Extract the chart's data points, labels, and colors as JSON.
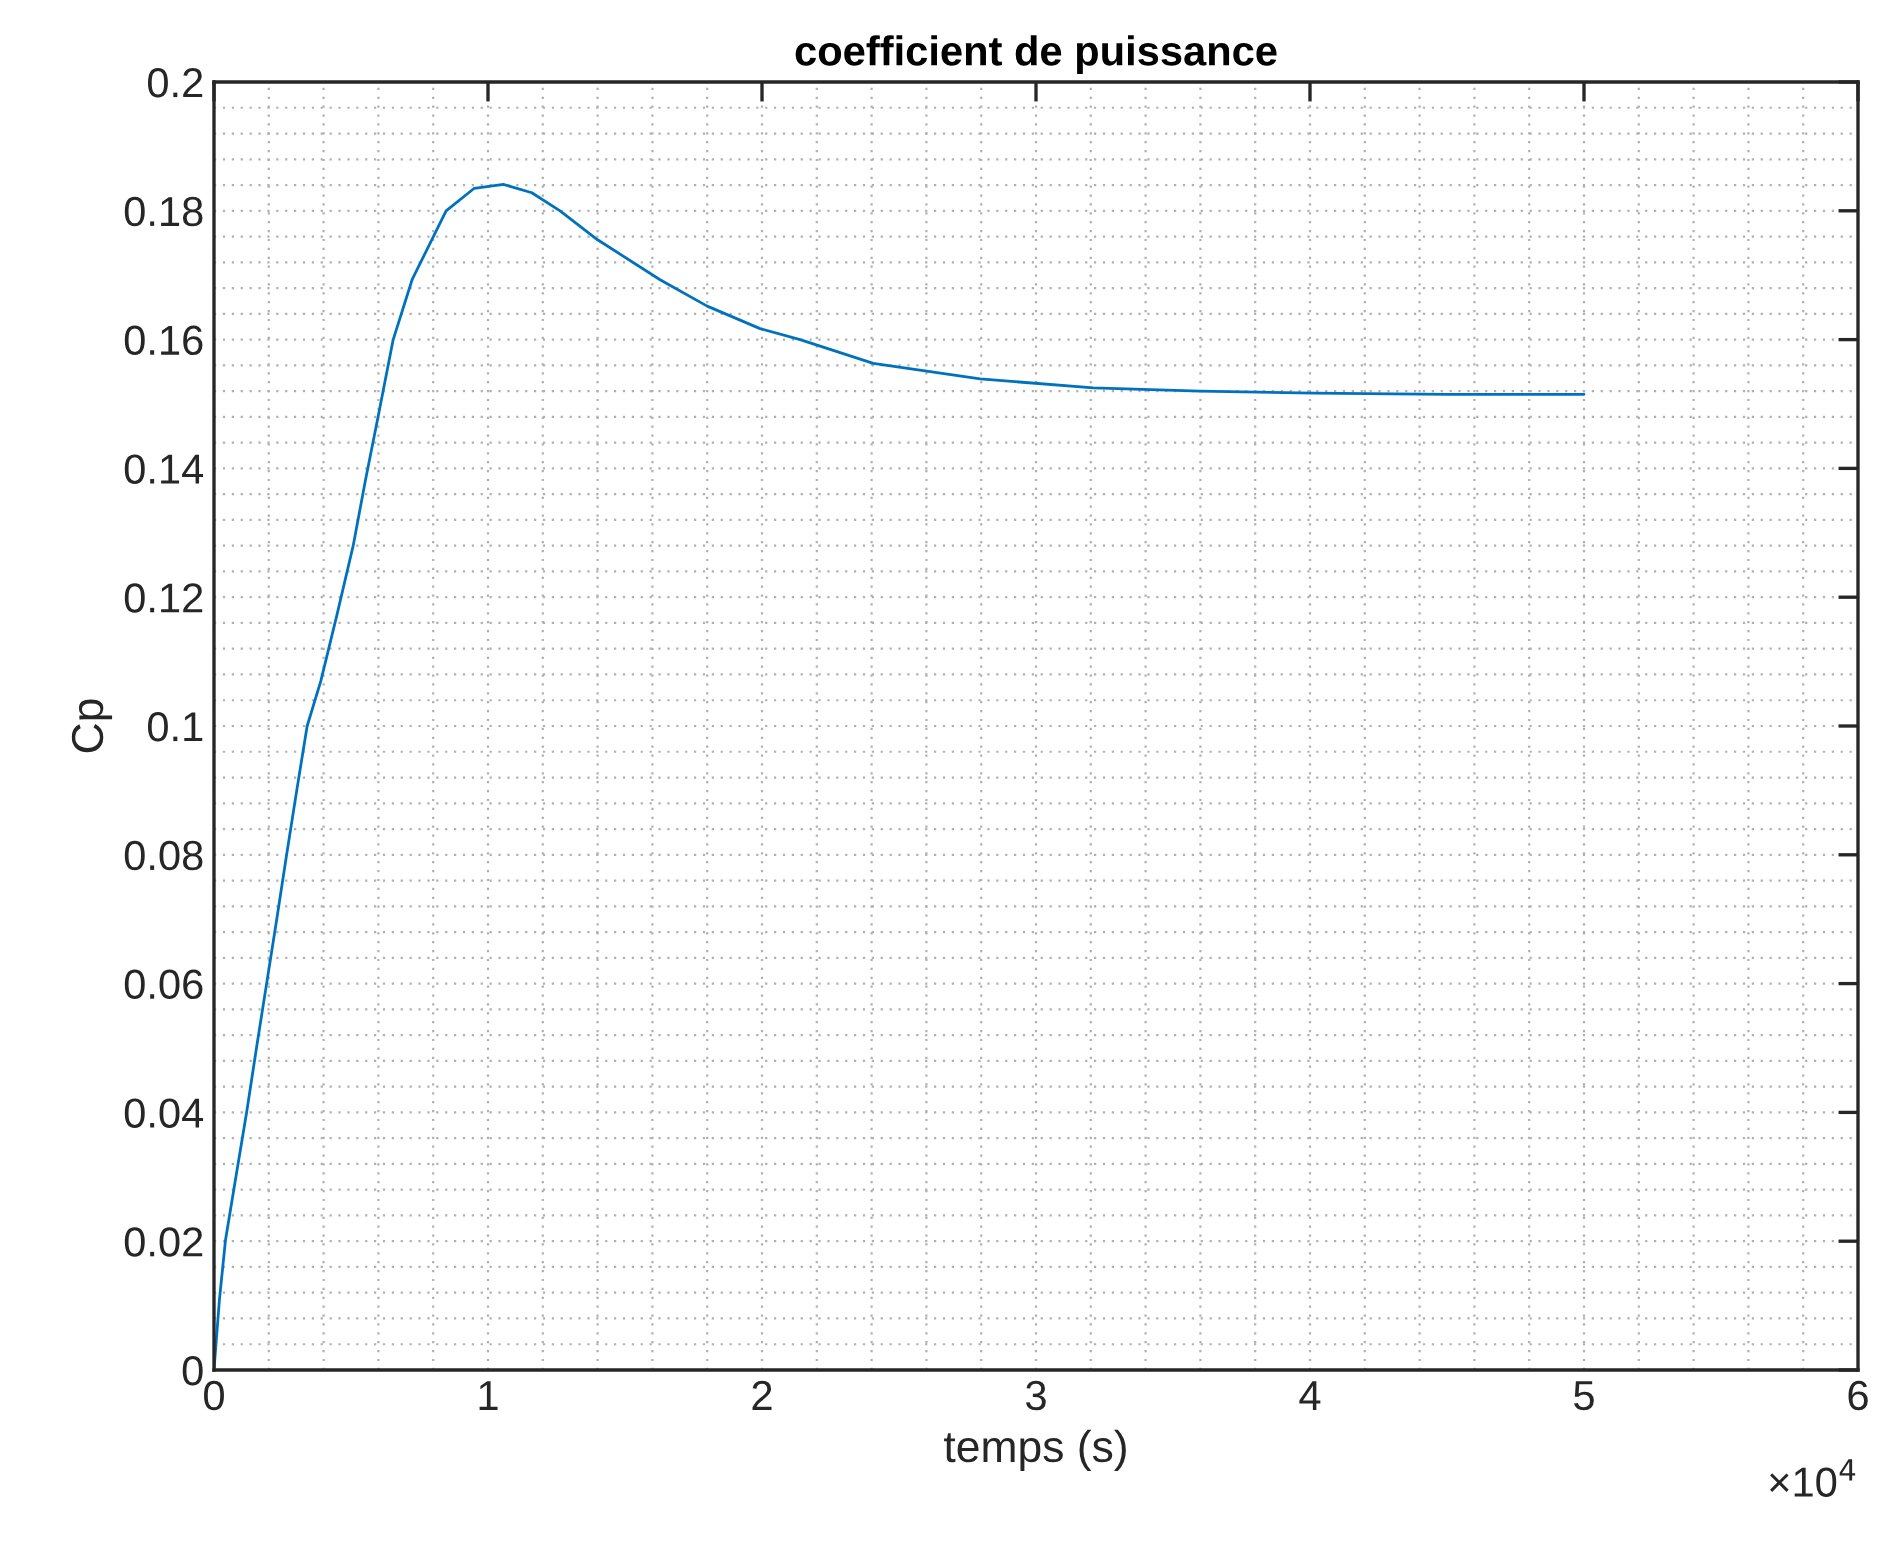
{
  "chart_data": {
    "type": "line",
    "title": "coefficient de puissance",
    "xlabel": "temps (s)",
    "ylabel": "Cp",
    "annotations": [
      "×10$^{4}$"
    ],
    "x": [
      0,
      0.02,
      0.042,
      0.08,
      0.119,
      0.155,
      0.192,
      0.229,
      0.265,
      0.302,
      0.34,
      0.39,
      0.45,
      0.508,
      0.552,
      0.601,
      0.654,
      0.723,
      0.847,
      0.95,
      1.056,
      1.16,
      1.263,
      1.4,
      1.628,
      1.8,
      1.993,
      2.139,
      2.406,
      2.796,
      3.209,
      3.598,
      4.012,
      4.5,
      5
    ],
    "series": [
      {
        "color": "#0072bd",
        "values": [
          0,
          0.011,
          0.0202,
          0.03,
          0.04,
          0.05,
          0.06,
          0.07,
          0.08,
          0.09,
          0.1,
          0.107,
          0.1175,
          0.128,
          0.138,
          0.1485,
          0.16,
          0.1693,
          0.18,
          0.1835,
          0.1841,
          0.1828,
          0.18,
          0.1755,
          0.1693,
          0.1652,
          0.1617,
          0.16,
          0.1563,
          0.1539,
          0.1525,
          0.152,
          0.1517,
          0.1515,
          0.1515
        ]
      }
    ],
    "xlim": [
      0,
      6
    ],
    "ylim": [
      0,
      0.2
    ],
    "xticks": [
      0,
      1,
      2,
      3,
      4,
      5,
      6
    ],
    "yticks": [
      0,
      {
        "value": 0.02,
        "label": "0.02"
      },
      {
        "value": 0.04,
        "label": "0.04"
      },
      {
        "value": 0.06,
        "label": "0.06"
      },
      {
        "value": 0.08,
        "label": "0.08"
      },
      0.1,
      0.12,
      0.14,
      0.16,
      0.18,
      0.2
    ],
    "grid": true,
    "line_style": "solid"
  }
}
